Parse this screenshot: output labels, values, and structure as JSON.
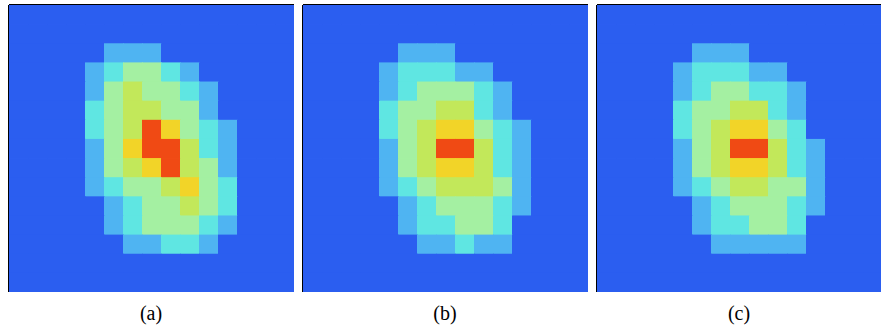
{
  "chart_data": [
    {
      "type": "heatmap",
      "title": "(a)",
      "xlim": [
        0,
        15
      ],
      "ylim": [
        0,
        15
      ],
      "tick_labels": false,
      "colors": [
        "#2b5ef0",
        "#4fb4f2",
        "#5fe6e2",
        "#a4f0a2",
        "#c2e85a",
        "#f2d428",
        "#f04a14"
      ],
      "cells": [
        [
          0,
          0,
          0,
          0,
          0,
          0,
          0,
          0,
          0,
          0,
          0,
          0,
          0,
          0,
          0
        ],
        [
          0,
          0,
          0,
          0,
          0,
          0,
          0,
          0,
          0,
          0,
          0,
          0,
          0,
          0,
          0
        ],
        [
          0,
          0,
          0,
          0,
          0,
          1,
          1,
          1,
          0,
          0,
          0,
          0,
          0,
          0,
          0
        ],
        [
          0,
          0,
          0,
          0,
          1,
          2,
          3,
          3,
          2,
          1,
          0,
          0,
          0,
          0,
          0
        ],
        [
          0,
          0,
          0,
          0,
          1,
          3,
          4,
          3,
          3,
          2,
          1,
          0,
          0,
          0,
          0
        ],
        [
          0,
          0,
          0,
          0,
          2,
          3,
          4,
          4,
          3,
          3,
          1,
          0,
          0,
          0,
          0
        ],
        [
          0,
          0,
          0,
          0,
          2,
          3,
          4,
          6,
          5,
          3,
          2,
          1,
          0,
          0,
          0
        ],
        [
          0,
          0,
          0,
          0,
          1,
          3,
          5,
          6,
          6,
          4,
          2,
          1,
          0,
          0,
          0
        ],
        [
          0,
          0,
          0,
          0,
          1,
          3,
          4,
          5,
          6,
          4,
          3,
          1,
          0,
          0,
          0
        ],
        [
          0,
          0,
          0,
          0,
          1,
          2,
          3,
          3,
          4,
          5,
          3,
          2,
          0,
          0,
          0
        ],
        [
          0,
          0,
          0,
          0,
          0,
          1,
          2,
          3,
          3,
          4,
          3,
          2,
          0,
          0,
          0
        ],
        [
          0,
          0,
          0,
          0,
          0,
          1,
          2,
          3,
          3,
          3,
          2,
          1,
          0,
          0,
          0
        ],
        [
          0,
          0,
          0,
          0,
          0,
          0,
          1,
          1,
          2,
          2,
          1,
          0,
          0,
          0,
          0
        ],
        [
          0,
          0,
          0,
          0,
          0,
          0,
          0,
          0,
          0,
          0,
          0,
          0,
          0,
          0,
          0
        ],
        [
          0,
          0,
          0,
          0,
          0,
          0,
          0,
          0,
          0,
          0,
          0,
          0,
          0,
          0,
          0
        ]
      ]
    },
    {
      "type": "heatmap",
      "title": "(b)",
      "xlim": [
        0,
        15
      ],
      "ylim": [
        0,
        15
      ],
      "tick_labels": false,
      "colors": [
        "#2b5ef0",
        "#4fb4f2",
        "#5fe6e2",
        "#a4f0a2",
        "#c2e85a",
        "#f2d428",
        "#f04a14"
      ],
      "cells": [
        [
          0,
          0,
          0,
          0,
          0,
          0,
          0,
          0,
          0,
          0,
          0,
          0,
          0,
          0,
          0
        ],
        [
          0,
          0,
          0,
          0,
          0,
          0,
          0,
          0,
          0,
          0,
          0,
          0,
          0,
          0,
          0
        ],
        [
          0,
          0,
          0,
          0,
          0,
          1,
          1,
          1,
          0,
          0,
          0,
          0,
          0,
          0,
          0
        ],
        [
          0,
          0,
          0,
          0,
          1,
          2,
          2,
          2,
          1,
          1,
          0,
          0,
          0,
          0,
          0
        ],
        [
          0,
          0,
          0,
          0,
          1,
          2,
          3,
          3,
          3,
          2,
          1,
          0,
          0,
          0,
          0
        ],
        [
          0,
          0,
          0,
          0,
          2,
          3,
          3,
          4,
          4,
          2,
          1,
          0,
          0,
          0,
          0
        ],
        [
          0,
          0,
          0,
          0,
          2,
          3,
          4,
          5,
          5,
          3,
          2,
          1,
          0,
          0,
          0
        ],
        [
          0,
          0,
          0,
          0,
          1,
          3,
          4,
          6,
          6,
          4,
          2,
          1,
          0,
          0,
          0
        ],
        [
          0,
          0,
          0,
          0,
          1,
          3,
          4,
          5,
          5,
          4,
          2,
          1,
          0,
          0,
          0
        ],
        [
          0,
          0,
          0,
          0,
          1,
          2,
          3,
          4,
          4,
          4,
          3,
          1,
          0,
          0,
          0
        ],
        [
          0,
          0,
          0,
          0,
          0,
          1,
          2,
          3,
          3,
          3,
          2,
          1,
          0,
          0,
          0
        ],
        [
          0,
          0,
          0,
          0,
          0,
          1,
          2,
          2,
          3,
          3,
          2,
          0,
          0,
          0,
          0
        ],
        [
          0,
          0,
          0,
          0,
          0,
          0,
          1,
          1,
          2,
          1,
          1,
          0,
          0,
          0,
          0
        ],
        [
          0,
          0,
          0,
          0,
          0,
          0,
          0,
          0,
          0,
          0,
          0,
          0,
          0,
          0,
          0
        ],
        [
          0,
          0,
          0,
          0,
          0,
          0,
          0,
          0,
          0,
          0,
          0,
          0,
          0,
          0,
          0
        ]
      ]
    },
    {
      "type": "heatmap",
      "title": "(c)",
      "xlim": [
        0,
        15
      ],
      "ylim": [
        0,
        15
      ],
      "tick_labels": false,
      "colors": [
        "#2b5ef0",
        "#4fb4f2",
        "#5fe6e2",
        "#a4f0a2",
        "#c2e85a",
        "#f2d428",
        "#f04a14"
      ],
      "cells": [
        [
          0,
          0,
          0,
          0,
          0,
          0,
          0,
          0,
          0,
          0,
          0,
          0,
          0,
          0,
          0
        ],
        [
          0,
          0,
          0,
          0,
          0,
          0,
          0,
          0,
          0,
          0,
          0,
          0,
          0,
          0,
          0
        ],
        [
          0,
          0,
          0,
          0,
          0,
          1,
          1,
          1,
          0,
          0,
          0,
          0,
          0,
          0,
          0
        ],
        [
          0,
          0,
          0,
          0,
          1,
          2,
          2,
          2,
          1,
          1,
          0,
          0,
          0,
          0,
          0
        ],
        [
          0,
          0,
          0,
          0,
          1,
          2,
          3,
          3,
          2,
          2,
          1,
          0,
          0,
          0,
          0
        ],
        [
          0,
          0,
          0,
          0,
          2,
          3,
          3,
          4,
          4,
          2,
          1,
          0,
          0,
          0,
          0
        ],
        [
          0,
          0,
          0,
          0,
          2,
          3,
          4,
          5,
          5,
          3,
          2,
          0,
          0,
          0,
          0
        ],
        [
          0,
          0,
          0,
          0,
          1,
          3,
          4,
          6,
          6,
          4,
          2,
          1,
          0,
          0,
          0
        ],
        [
          0,
          0,
          0,
          0,
          1,
          3,
          4,
          5,
          5,
          4,
          2,
          1,
          0,
          0,
          0
        ],
        [
          0,
          0,
          0,
          0,
          1,
          2,
          3,
          4,
          4,
          3,
          3,
          1,
          0,
          0,
          0
        ],
        [
          0,
          0,
          0,
          0,
          0,
          1,
          2,
          3,
          3,
          3,
          2,
          1,
          0,
          0,
          0
        ],
        [
          0,
          0,
          0,
          0,
          0,
          1,
          2,
          2,
          3,
          3,
          2,
          0,
          0,
          0,
          0
        ],
        [
          0,
          0,
          0,
          0,
          0,
          0,
          1,
          1,
          1,
          1,
          1,
          0,
          0,
          0,
          0
        ],
        [
          0,
          0,
          0,
          0,
          0,
          0,
          0,
          0,
          0,
          0,
          0,
          0,
          0,
          0,
          0
        ],
        [
          0,
          0,
          0,
          0,
          0,
          0,
          0,
          0,
          0,
          0,
          0,
          0,
          0,
          0,
          0
        ]
      ]
    }
  ]
}
